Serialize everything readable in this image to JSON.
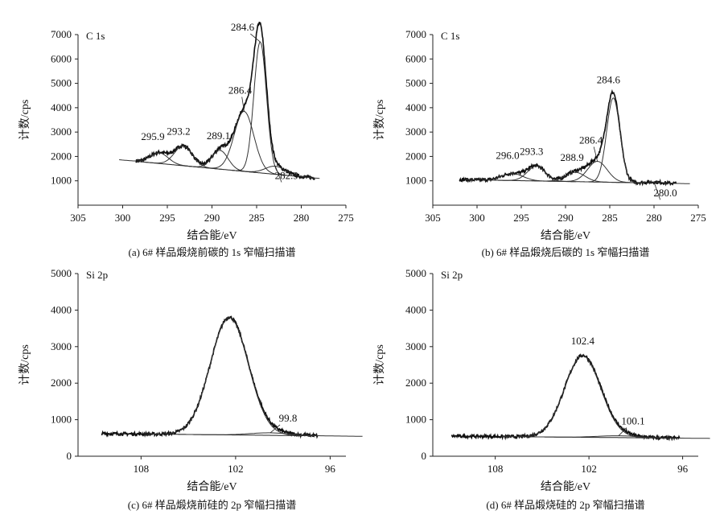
{
  "chart_data": [
    {
      "type": "line",
      "panel_label": "C 1s",
      "caption": "(a) 6# 样品煅烧前碳的 1s 窄幅扫描谱",
      "xlabel": "结合能/eV",
      "ylabel": "计数/cps",
      "xlim": [
        305,
        275
      ],
      "ylim": [
        0,
        7000
      ],
      "x_ticks": [
        "305",
        "300",
        "295",
        "290",
        "285",
        "280",
        "275"
      ],
      "y_ticks": [
        "1000",
        "2000",
        "3000",
        "4000",
        "5000",
        "6000",
        "7000"
      ],
      "x_reversed": true,
      "grid": false,
      "background": 1800,
      "peaks": [
        {
          "label": "295.9",
          "center": 295.9,
          "height": 2150
        },
        {
          "label": "293.2",
          "center": 293.2,
          "height": 2430
        },
        {
          "label": "289.1",
          "center": 289.1,
          "height": 2250
        },
        {
          "label": "286.4",
          "center": 286.4,
          "height": 3850
        },
        {
          "label": "284.6",
          "center": 284.6,
          "height": 6700
        },
        {
          "label": "282.9",
          "center": 282.9,
          "height": 1600
        }
      ]
    },
    {
      "type": "line",
      "panel_label": "C 1s",
      "caption": "(b) 6# 样品煅烧后碳的 1s 窄幅扫描谱",
      "xlabel": "结合能/eV",
      "ylabel": "计数/cps",
      "xlim": [
        305,
        275
      ],
      "ylim": [
        0,
        7000
      ],
      "x_ticks": [
        "305",
        "300",
        "295",
        "290",
        "285",
        "280",
        "275"
      ],
      "y_ticks": [
        "1000",
        "2000",
        "3000",
        "4000",
        "5000",
        "6000",
        "7000"
      ],
      "x_reversed": true,
      "grid": false,
      "background": 1050,
      "peaks": [
        {
          "label": "296.0",
          "center": 296.0,
          "height": 1300
        },
        {
          "label": "293.3",
          "center": 293.3,
          "height": 1600
        },
        {
          "label": "288.9",
          "center": 288.9,
          "height": 1350
        },
        {
          "label": "286.4",
          "center": 286.4,
          "height": 1800
        },
        {
          "label": "284.6",
          "center": 284.6,
          "height": 4400
        },
        {
          "label": "280.0",
          "center": 280.0,
          "height": 950
        }
      ]
    },
    {
      "type": "line",
      "panel_label": "Si 2p",
      "caption": "(c) 6# 样品煅烧前硅的 2p 窄幅扫描谱",
      "xlabel": "结合能/eV",
      "ylabel": "计数/cps",
      "xlim": [
        112,
        95
      ],
      "ylim": [
        0,
        5000
      ],
      "x_ticks": [
        "108",
        "102",
        "96"
      ],
      "y_ticks": [
        "0",
        "1000",
        "2000",
        "3000",
        "4000",
        "5000"
      ],
      "x_reversed": true,
      "grid": false,
      "background": 620,
      "peaks": [
        {
          "label": "",
          "center": 102.4,
          "height": 3800
        },
        {
          "label": "99.8",
          "center": 99.8,
          "height": 640
        }
      ]
    },
    {
      "type": "line",
      "panel_label": "Si 2p",
      "caption": "(d) 6# 样品煅烧硅的 2p 窄幅扫描谱",
      "xlabel": "结合能/eV",
      "ylabel": "计数/cps",
      "xlim": [
        112,
        95
      ],
      "ylim": [
        0,
        5000
      ],
      "x_ticks": [
        "108",
        "102",
        "96"
      ],
      "y_ticks": [
        "0",
        "1000",
        "2000",
        "3000",
        "4000",
        "5000"
      ],
      "x_reversed": true,
      "grid": false,
      "background": 550,
      "peaks": [
        {
          "label": "102.4",
          "center": 102.4,
          "height": 2750
        },
        {
          "label": "100.1",
          "center": 100.1,
          "height": 560
        }
      ]
    }
  ]
}
